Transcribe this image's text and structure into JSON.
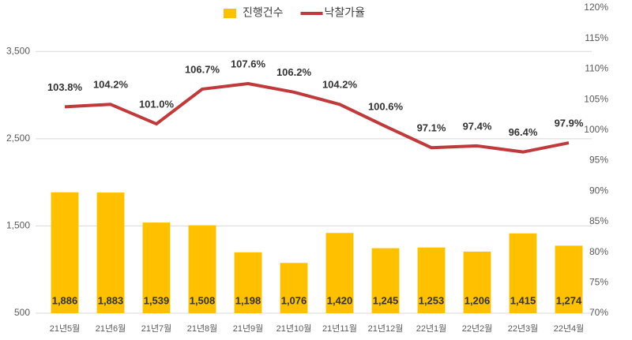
{
  "chart_data": {
    "type": "combo",
    "categories": [
      "21년5월",
      "21년6월",
      "21년7월",
      "21년8월",
      "21년9월",
      "21년10월",
      "21년11월",
      "21년12월",
      "22년1월",
      "22년2월",
      "22년3월",
      "22년4월"
    ],
    "series": [
      {
        "name": "진행건수",
        "type": "bar",
        "color": "#ffc000",
        "values": [
          1886,
          1883,
          1539,
          1508,
          1198,
          1076,
          1420,
          1245,
          1253,
          1206,
          1415,
          1274
        ],
        "value_labels": [
          "1,886",
          "1,883",
          "1,539",
          "1,508",
          "1,198",
          "1,076",
          "1,420",
          "1,245",
          "1,253",
          "1,206",
          "1,415",
          "1,274"
        ]
      },
      {
        "name": "낙찰가율",
        "type": "line",
        "axis": "y2",
        "color": "#c0393b",
        "values": [
          103.8,
          104.2,
          101.0,
          106.7,
          107.6,
          106.2,
          104.2,
          100.6,
          97.1,
          97.4,
          96.4,
          97.9
        ],
        "value_labels": [
          "103.8%",
          "104.2%",
          "101.0%",
          "106.7%",
          "107.6%",
          "106.2%",
          "104.2%",
          "100.6%",
          "97.1%",
          "97.4%",
          "96.4%",
          "97.9%"
        ]
      }
    ],
    "ylim": [
      500,
      4000
    ],
    "yticks": [
      500,
      {
        "value": 1500,
        "label": "1,500"
      },
      {
        "value": 2500,
        "label": "2,500"
      },
      {
        "value": 3500,
        "label": "3,500"
      }
    ],
    "y2lim": [
      70,
      120
    ],
    "y2ticks": [
      {
        "value": 70,
        "label": "70%"
      },
      {
        "value": 75,
        "label": "75%"
      },
      {
        "value": 80,
        "label": "80%"
      },
      {
        "value": 85,
        "label": "85%"
      },
      {
        "value": 90,
        "label": "90%"
      },
      {
        "value": 95,
        "label": "95%"
      },
      {
        "value": 100,
        "label": "100%"
      },
      {
        "value": 105,
        "label": "105%"
      },
      {
        "value": 110,
        "label": "110%"
      },
      {
        "value": 115,
        "label": "115%"
      },
      {
        "value": 120,
        "label": "120%"
      }
    ],
    "grid": true,
    "legend": "top"
  }
}
